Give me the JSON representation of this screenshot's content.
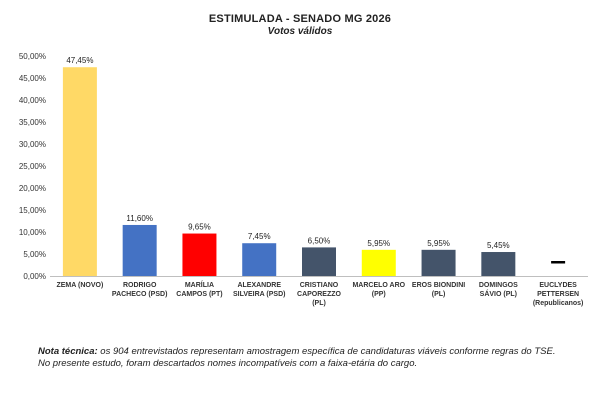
{
  "chart_data": {
    "type": "bar",
    "title": "ESTIMULADA - SENADO MG 2026",
    "subtitle": "Votos válidos",
    "xlabel": "",
    "ylabel": "",
    "ylim": [
      0,
      50
    ],
    "yticks": [
      "0,00%",
      "5,00%",
      "10,00%",
      "15,00%",
      "20,00%",
      "25,00%",
      "30,00%",
      "35,00%",
      "40,00%",
      "45,00%",
      "50,00%"
    ],
    "grid": false,
    "legend": "none",
    "categories": [
      [
        "ZEMA (NOVO)"
      ],
      [
        "RODRIGO",
        "PACHECO (PSD)"
      ],
      [
        "MARÍLIA",
        "CAMPOS (PT)"
      ],
      [
        "ALEXANDRE",
        "SILVEIRA (PSD)"
      ],
      [
        "CRISTIANO",
        "CAPOREZZO",
        "(PL)"
      ],
      [
        "MARCELO ARO",
        "(PP)"
      ],
      [
        "EROS BIONDINI",
        "(PL)"
      ],
      [
        "DOMINGOS",
        "SÁVIO (PL)"
      ],
      [
        "EUCLYDES",
        "PETTERSEN",
        "(Republicanos)"
      ]
    ],
    "values": [
      47.45,
      11.6,
      9.65,
      7.45,
      6.5,
      5.95,
      5.95,
      5.45,
      0
    ],
    "data_labels": [
      "47,45%",
      "11,60%",
      "9,65%",
      "7,45%",
      "6,50%",
      "5,95%",
      "5,95%",
      "5,45%",
      "–"
    ],
    "colors": [
      "#ffd966",
      "#4472c4",
      "#ff0000",
      "#4472c4",
      "#44546a",
      "#ffff00",
      "#44546a",
      "#44546a",
      "#000000"
    ]
  },
  "note": {
    "label": "Nota técnica:",
    "text": " os 904 entrevistados representam amostragem específica de candidaturas viáveis conforme regras do TSE. No presente estudo, foram descartados nomes incompatíveis com a faixa-etária do cargo."
  }
}
